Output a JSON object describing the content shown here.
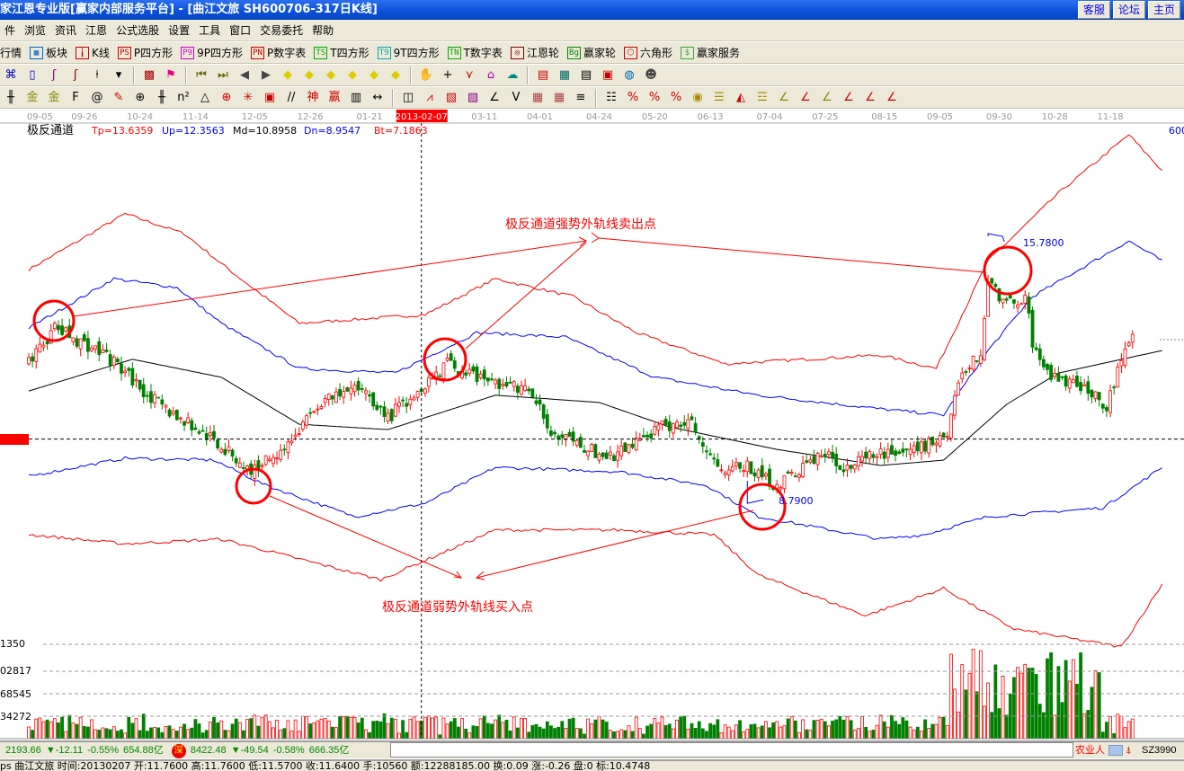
{
  "window": {
    "title": "家江恩专业版[赢家内部服务平台] - [曲江文旅   SH600706-317日K线]",
    "buttons": [
      "客服",
      "论坛",
      "主页"
    ]
  },
  "menu": [
    "件",
    "浏览",
    "资讯",
    "江恩",
    "公式选股",
    "设置",
    "工具",
    "窗口",
    "交易委托",
    "帮助"
  ],
  "toolbar1": [
    {
      "label": "行情",
      "icon": "quote-icon",
      "glyph": "",
      "color": "#000"
    },
    {
      "label": "板块",
      "icon": "sector-grid-icon",
      "glyph": "▦",
      "color": "#06c"
    },
    {
      "label": "K线",
      "icon": "kline-icon",
      "glyph": "╽",
      "color": "#c00"
    },
    {
      "label": "P四方形",
      "icon": "ps-icon",
      "glyph": "PS",
      "color": "#c00"
    },
    {
      "label": "9P四方形",
      "icon": "p9-icon",
      "glyph": "P9",
      "color": "#c0c"
    },
    {
      "label": "P数字表",
      "icon": "pn-icon",
      "glyph": "PN",
      "color": "#c00"
    },
    {
      "label": "T四方形",
      "icon": "ts-icon",
      "glyph": "TS",
      "color": "#0a0"
    },
    {
      "label": "9T四方形",
      "icon": "t9-icon",
      "glyph": "T9",
      "color": "#0aa"
    },
    {
      "label": "T数字表",
      "icon": "tn-icon",
      "glyph": "TN",
      "color": "#0a0"
    },
    {
      "label": "江恩轮",
      "icon": "gann-wheel-icon",
      "glyph": "◎",
      "color": "#800"
    },
    {
      "label": "赢家轮",
      "icon": "big-wheel-icon",
      "glyph": "Bg",
      "color": "#080"
    },
    {
      "label": "六角形",
      "icon": "hexagon-icon",
      "glyph": "⬡",
      "color": "#c00"
    },
    {
      "label": "赢家服务",
      "icon": "dollar-icon",
      "glyph": "$",
      "color": "#3a3"
    }
  ],
  "toolbar2": [
    {
      "icon": "map-icon",
      "glyph": "⌘",
      "color": "#00c"
    },
    {
      "icon": "notes-icon",
      "glyph": "▯",
      "color": "#00c"
    },
    {
      "icon": "wave3-icon",
      "glyph": "ʃ",
      "color": "#808"
    },
    {
      "icon": "wave9-icon",
      "glyph": "ʃ",
      "color": "#800"
    },
    {
      "icon": "candle-icon",
      "glyph": "⍿",
      "color": "#000"
    },
    {
      "icon": "dropdown-icon",
      "glyph": "▾",
      "color": "#000"
    },
    {
      "sep": true
    },
    {
      "icon": "china-map-icon",
      "glyph": "▩",
      "color": "#a00"
    },
    {
      "icon": "flag-icon",
      "glyph": "⚑",
      "color": "#e08"
    },
    {
      "sep": true
    },
    {
      "icon": "first-icon",
      "glyph": "⏮",
      "color": "#660"
    },
    {
      "icon": "last-icon",
      "glyph": "⏭",
      "color": "#660"
    },
    {
      "icon": "left-icon",
      "glyph": "◀",
      "color": "#444"
    },
    {
      "icon": "right-icon",
      "glyph": "▶",
      "color": "#444"
    },
    {
      "icon": "move-left-icon",
      "glyph": "◆",
      "color": "#dc0"
    },
    {
      "icon": "move-right-icon",
      "glyph": "◆",
      "color": "#dc0"
    },
    {
      "icon": "expand-h-icon",
      "glyph": "◆",
      "color": "#dc0"
    },
    {
      "icon": "shrink-icon",
      "glyph": "◆",
      "color": "#dc0"
    },
    {
      "icon": "expand-v-icon",
      "glyph": "◆",
      "color": "#dc0"
    },
    {
      "icon": "expand-all-icon",
      "glyph": "◆",
      "color": "#dc0"
    },
    {
      "sep": true
    },
    {
      "icon": "hand-icon",
      "glyph": "✋",
      "color": "#000"
    },
    {
      "icon": "crosshair-icon",
      "glyph": "+",
      "color": "#000"
    },
    {
      "icon": "pattern-icon",
      "glyph": "⋎",
      "color": "#c00"
    },
    {
      "icon": "puzzle-icon",
      "glyph": "⌂",
      "color": "#a0a"
    },
    {
      "icon": "brain-icon",
      "glyph": "☁",
      "color": "#088"
    },
    {
      "sep": true
    },
    {
      "icon": "calendar-icon",
      "glyph": "▤",
      "color": "#c00"
    },
    {
      "icon": "calculator-icon",
      "glyph": "▦",
      "color": "#066"
    },
    {
      "icon": "document-icon",
      "glyph": "▤",
      "color": "#000"
    },
    {
      "icon": "save-icon",
      "glyph": "▣",
      "color": "#c00"
    },
    {
      "icon": "network-icon",
      "glyph": "◍",
      "color": "#06a"
    },
    {
      "icon": "user-icon",
      "glyph": "☻",
      "color": "#444"
    }
  ],
  "toolbar3": [
    {
      "icon": "line-tool-icon",
      "glyph": "╫",
      "color": "#000"
    },
    {
      "icon": "gold-icon",
      "glyph": "金",
      "color": "#880"
    },
    {
      "icon": "gold2-icon",
      "glyph": "金",
      "color": "#880"
    },
    {
      "icon": "fib-icon",
      "glyph": "F",
      "color": "#000"
    },
    {
      "icon": "spiral-icon",
      "glyph": "@",
      "color": "#000"
    },
    {
      "icon": "pen-icon",
      "glyph": "✎",
      "color": "#c00"
    },
    {
      "icon": "circle-grid-icon",
      "glyph": "⊕",
      "color": "#000"
    },
    {
      "icon": "bars-icon",
      "glyph": "╫",
      "color": "#000"
    },
    {
      "icon": "n2-icon",
      "glyph": "n²",
      "color": "#000"
    },
    {
      "icon": "triangle-icon",
      "glyph": "△",
      "color": "#000"
    },
    {
      "icon": "target-icon",
      "glyph": "⊕",
      "color": "#c00"
    },
    {
      "icon": "web-icon",
      "glyph": "✳",
      "color": "#c00"
    },
    {
      "icon": "square-grid-icon",
      "glyph": "▣",
      "color": "#c00"
    },
    {
      "icon": "slash-icon",
      "glyph": "//",
      "color": "#000"
    },
    {
      "icon": "shen-icon",
      "glyph": "神",
      "color": "#c00"
    },
    {
      "icon": "ying-icon",
      "glyph": "赢",
      "color": "#c00"
    },
    {
      "icon": "ruler-icon",
      "glyph": "▥",
      "color": "#000"
    },
    {
      "icon": "width-icon",
      "glyph": "↔",
      "color": "#000"
    },
    {
      "sep": true
    },
    {
      "icon": "box-icon",
      "glyph": "◫",
      "color": "#000"
    },
    {
      "icon": "fan-icon",
      "glyph": "⩘",
      "color": "#c00"
    },
    {
      "icon": "gann-box-icon",
      "glyph": "▧",
      "color": "#c00"
    },
    {
      "icon": "gann-fan-icon",
      "glyph": "▧",
      "color": "#808"
    },
    {
      "icon": "angle-icon",
      "glyph": "∠",
      "color": "#000"
    },
    {
      "icon": "v-icon",
      "glyph": "V",
      "color": "#000"
    },
    {
      "icon": "grid-icon",
      "glyph": "▦",
      "color": "#a44"
    },
    {
      "icon": "grid2-icon",
      "glyph": "▦",
      "color": "#a44"
    },
    {
      "icon": "parallel-icon",
      "glyph": "≡",
      "color": "#000"
    },
    {
      "sep": true
    },
    {
      "icon": "table-icon",
      "glyph": "☷",
      "color": "#000"
    },
    {
      "icon": "percent-icon",
      "glyph": "%",
      "color": "#c00"
    },
    {
      "icon": "percent2-icon",
      "glyph": "%",
      "color": "#c00"
    },
    {
      "icon": "percent3-icon",
      "glyph": "%",
      "color": "#c00"
    },
    {
      "icon": "coin-icon",
      "glyph": "◉",
      "color": "#a80"
    },
    {
      "icon": "lines-icon",
      "glyph": "☰",
      "color": "#a80"
    },
    {
      "icon": "speaker-icon",
      "glyph": "◭",
      "color": "#c00"
    },
    {
      "icon": "level-icon",
      "glyph": "☲",
      "color": "#a80"
    },
    {
      "icon": "level2-icon",
      "glyph": "∠",
      "color": "#880"
    },
    {
      "icon": "level3-icon",
      "glyph": "∠",
      "color": "#c00"
    },
    {
      "icon": "level4-icon",
      "glyph": "∠",
      "color": "#880"
    },
    {
      "icon": "level5-icon",
      "glyph": "∠",
      "color": "#c00"
    },
    {
      "icon": "level6-icon",
      "glyph": "∠",
      "color": "#c00"
    },
    {
      "icon": "level7-icon",
      "glyph": "∠",
      "color": "#c00"
    }
  ],
  "indicator": {
    "name": "极反通道",
    "tp": "Tp=13.6359",
    "up": "Up=12.3563",
    "md": "Md=10.8958",
    "dn": "Dn=8.9547",
    "bt": "Bt=7.1863",
    "right_label": "600"
  },
  "annotations": {
    "sell": "极反通道强势外轨线卖出点",
    "buy": "极反通道弱势外轨线买入点",
    "high_label": "15.7800",
    "low_label": "8.7900"
  },
  "volume_axis": [
    "1350",
    "02817",
    "68545",
    "34272"
  ],
  "statusbar": {
    "sh_index": "2193.66",
    "sh_change": "▼-12.11",
    "sh_pct": "-0.55%",
    "sh_amount": "654.88亿",
    "sz_badge": "深",
    "sz_index": "8422.48",
    "sz_change": "▼-49.54",
    "sz_pct": "-0.58%",
    "sz_amount": "666.35亿",
    "input_value": "",
    "right_text": "农业人",
    "code": "SZ3990"
  },
  "infobar": "ps 曲江文旅 时间:20130207 开:11.7600 高:11.7600 低:11.5700 收:11.6400 手:10560 额:12288185.00 换:0.09 涨:-0.26 盘:0 标:10.4748",
  "colors": {
    "up": "#ff0000",
    "down": "#008000",
    "band_outer": "#ff0000",
    "band_inner": "#0000ff",
    "band_mid": "#000000",
    "title_bar": "#0a4fd8"
  },
  "chart_data": {
    "type": "candlestick",
    "title": "极反通道",
    "bars": 307,
    "x_ticks": [
      {
        "i": 3,
        "label": "09-05"
      },
      {
        "i": 15,
        "label": "09-26"
      },
      {
        "i": 30,
        "label": "10-24"
      },
      {
        "i": 45,
        "label": "11-14"
      },
      {
        "i": 61,
        "label": "12-05"
      },
      {
        "i": 76,
        "label": "12-26"
      },
      {
        "i": 92,
        "label": "01-21"
      },
      {
        "i": 106,
        "label": "2013-02-07",
        "highlight": true
      },
      {
        "i": 123,
        "label": "03-11"
      },
      {
        "i": 138,
        "label": "04-01"
      },
      {
        "i": 154,
        "label": "04-24"
      },
      {
        "i": 169,
        "label": "05-20"
      },
      {
        "i": 184,
        "label": "06-13"
      },
      {
        "i": 200,
        "label": "07-04"
      },
      {
        "i": 215,
        "label": "07-25"
      },
      {
        "i": 231,
        "label": "08-15"
      },
      {
        "i": 246,
        "label": "09-05"
      },
      {
        "i": 262,
        "label": "09-30"
      },
      {
        "i": 277,
        "label": "10-28"
      },
      {
        "i": 292,
        "label": "11-18"
      }
    ],
    "close_path": [
      [
        1,
        12.56
      ],
      [
        7,
        13.38
      ],
      [
        21,
        12.67
      ],
      [
        35,
        11.38
      ],
      [
        50,
        10.44
      ],
      [
        60,
        9.62
      ],
      [
        71,
        10.44
      ],
      [
        78,
        11.38
      ],
      [
        90,
        11.85
      ],
      [
        97,
        11.03
      ],
      [
        106,
        11.85
      ],
      [
        113,
        12.44
      ],
      [
        121,
        12.09
      ],
      [
        135,
        11.73
      ],
      [
        142,
        10.56
      ],
      [
        157,
        9.97
      ],
      [
        171,
        10.79
      ],
      [
        179,
        10.91
      ],
      [
        186,
        9.73
      ],
      [
        194,
        9.73
      ],
      [
        202,
        9.26
      ],
      [
        214,
        10.09
      ],
      [
        221,
        9.73
      ],
      [
        230,
        10.09
      ],
      [
        240,
        10.2
      ],
      [
        248,
        10.67
      ],
      [
        251,
        12.09
      ],
      [
        257,
        12.67
      ],
      [
        259,
        14.67
      ],
      [
        264,
        13.97
      ],
      [
        269,
        14.2
      ],
      [
        271,
        13.03
      ],
      [
        276,
        12.09
      ],
      [
        283,
        11.85
      ],
      [
        291,
        11.38
      ],
      [
        297,
        13.14
      ]
    ],
    "bands": {
      "tp": [
        [
          0,
          14.91
        ],
        [
          26,
          16.37
        ],
        [
          42,
          15.85
        ],
        [
          54,
          14.91
        ],
        [
          73,
          13.5
        ],
        [
          107,
          13.73
        ],
        [
          126,
          14.67
        ],
        [
          147,
          14.2
        ],
        [
          164,
          13.26
        ],
        [
          188,
          12.44
        ],
        [
          230,
          12.67
        ],
        [
          245,
          12.32
        ],
        [
          259,
          15.14
        ],
        [
          278,
          16.91
        ],
        [
          297,
          18.44
        ],
        [
          306,
          17.5
        ]
      ],
      "up": [
        [
          0,
          13.38
        ],
        [
          23,
          14.67
        ],
        [
          40,
          14.44
        ],
        [
          52,
          13.5
        ],
        [
          73,
          12.32
        ],
        [
          99,
          12.2
        ],
        [
          121,
          13.26
        ],
        [
          145,
          13.14
        ],
        [
          169,
          12.09
        ],
        [
          197,
          11.62
        ],
        [
          230,
          11.26
        ],
        [
          247,
          11.1
        ],
        [
          259,
          12.79
        ],
        [
          271,
          14.2
        ],
        [
          297,
          15.66
        ],
        [
          306,
          15.14
        ]
      ],
      "md": [
        [
          0,
          11.73
        ],
        [
          28,
          12.56
        ],
        [
          52,
          12.09
        ],
        [
          73,
          10.86
        ],
        [
          97,
          10.72
        ],
        [
          126,
          11.62
        ],
        [
          154,
          11.43
        ],
        [
          173,
          10.79
        ],
        [
          202,
          10.2
        ],
        [
          230,
          9.78
        ],
        [
          247,
          9.92
        ],
        [
          264,
          11.38
        ],
        [
          278,
          12.2
        ],
        [
          306,
          12.79
        ]
      ],
      "dn": [
        [
          0,
          9.5
        ],
        [
          26,
          9.97
        ],
        [
          50,
          9.92
        ],
        [
          64,
          9.26
        ],
        [
          88,
          8.44
        ],
        [
          107,
          8.79
        ],
        [
          126,
          9.73
        ],
        [
          159,
          9.62
        ],
        [
          183,
          9.26
        ],
        [
          197,
          8.44
        ],
        [
          230,
          7.85
        ],
        [
          242,
          7.97
        ],
        [
          259,
          8.44
        ],
        [
          290,
          8.67
        ],
        [
          306,
          9.73
        ]
      ],
      "bt": [
        [
          0,
          7.97
        ],
        [
          26,
          7.73
        ],
        [
          52,
          7.85
        ],
        [
          76,
          7.26
        ],
        [
          95,
          6.79
        ],
        [
          126,
          8.09
        ],
        [
          159,
          8.09
        ],
        [
          185,
          7.97
        ],
        [
          197,
          6.91
        ],
        [
          226,
          5.85
        ],
        [
          247,
          6.56
        ],
        [
          266,
          5.5
        ],
        [
          295,
          5.03
        ],
        [
          306,
          6.67
        ]
      ]
    },
    "high_mark": {
      "i": 259,
      "value": 15.78
    },
    "low_mark": {
      "i": 194,
      "value": 8.79
    },
    "reference_line": 10.47,
    "cursor_index": 106
  }
}
